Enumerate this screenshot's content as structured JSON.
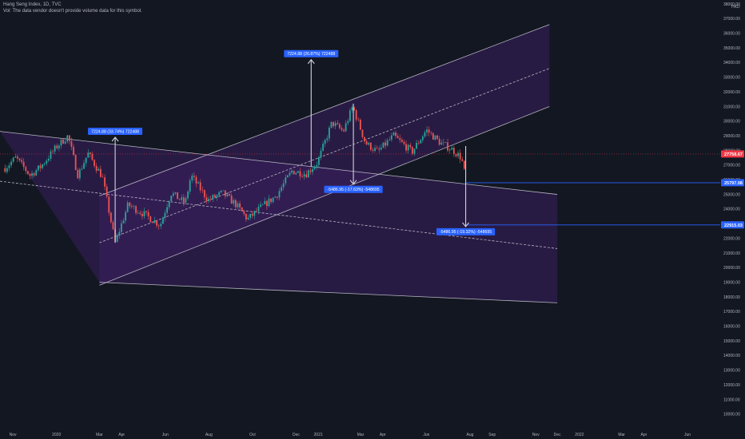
{
  "header": {
    "title": "Hang Seng Index, 1D, TVC",
    "subtitle": "Vol: The data vendor doesn't provide volume data for this symbol."
  },
  "colors": {
    "background": "#131722",
    "up": "#26a69a",
    "down": "#ef5350",
    "channel_line": "#d1d4dc",
    "channel_fill": "#3b1f5e",
    "label_blue": "#2962ff",
    "price_red": "#f23645"
  },
  "chart_data": {
    "type": "candlestick",
    "currency": "HKD",
    "ylim": [
      9500,
      38000
    ],
    "y_ticks": [
      "10000.00",
      "11000.00",
      "12000.00",
      "13000.00",
      "14000.00",
      "15000.00",
      "16000.00",
      "17000.00",
      "18000.00",
      "19000.00",
      "20000.00",
      "21000.00",
      "22000.00",
      "23000.00",
      "24000.00",
      "25000.00",
      "26000.00",
      "27000.00",
      "28000.00",
      "29000.00",
      "30000.00",
      "31000.00",
      "32000.00",
      "33000.00",
      "34000.00",
      "35000.00",
      "36000.00",
      "37000.00",
      "38000.00"
    ],
    "x_ticks": [
      "Nov",
      "2020",
      "Mar",
      "Apr",
      "Jun",
      "Aug",
      "Oct",
      "Dec",
      "2021",
      "Mar",
      "Apr",
      "Jun",
      "Aug",
      "Sep",
      "Nov",
      "Dec",
      "2022",
      "Mar",
      "Apr",
      "Jun"
    ],
    "x_tick_dates": [
      "2019-11-01",
      "2020-01-01",
      "2020-03-01",
      "2020-04-01",
      "2020-06-01",
      "2020-08-01",
      "2020-10-01",
      "2020-12-01",
      "2021-01-01",
      "2021-03-01",
      "2021-04-01",
      "2021-06-01",
      "2021-08-01",
      "2021-09-01",
      "2021-11-01",
      "2021-12-01",
      "2022-01-01",
      "2022-03-01",
      "2022-04-01",
      "2022-06-01"
    ],
    "price_path": [
      {
        "date": "2019-10-21",
        "close": 26800
      },
      {
        "date": "2019-11-05",
        "close": 27500
      },
      {
        "date": "2019-11-25",
        "close": 26300
      },
      {
        "date": "2019-12-10",
        "close": 26900
      },
      {
        "date": "2020-01-02",
        "close": 28300
      },
      {
        "date": "2020-01-17",
        "close": 29000
      },
      {
        "date": "2020-01-31",
        "close": 26300
      },
      {
        "date": "2020-02-14",
        "close": 27800
      },
      {
        "date": "2020-03-05",
        "close": 26200
      },
      {
        "date": "2020-03-23",
        "close": 21700
      },
      {
        "date": "2020-04-10",
        "close": 24300
      },
      {
        "date": "2020-05-04",
        "close": 23600
      },
      {
        "date": "2020-05-25",
        "close": 22900
      },
      {
        "date": "2020-06-09",
        "close": 25100
      },
      {
        "date": "2020-06-29",
        "close": 24400
      },
      {
        "date": "2020-07-07",
        "close": 26300
      },
      {
        "date": "2020-07-31",
        "close": 24600
      },
      {
        "date": "2020-08-20",
        "close": 25100
      },
      {
        "date": "2020-09-08",
        "close": 24300
      },
      {
        "date": "2020-09-24",
        "close": 23300
      },
      {
        "date": "2020-10-15",
        "close": 24200
      },
      {
        "date": "2020-11-03",
        "close": 24900
      },
      {
        "date": "2020-11-25",
        "close": 26600
      },
      {
        "date": "2020-12-15",
        "close": 26400
      },
      {
        "date": "2020-12-31",
        "close": 27200
      },
      {
        "date": "2021-01-20",
        "close": 29900
      },
      {
        "date": "2021-02-05",
        "close": 29300
      },
      {
        "date": "2021-02-18",
        "close": 31000
      },
      {
        "date": "2021-03-08",
        "close": 28500
      },
      {
        "date": "2021-03-25",
        "close": 27900
      },
      {
        "date": "2021-04-16",
        "close": 29000
      },
      {
        "date": "2021-05-12",
        "close": 27900
      },
      {
        "date": "2021-06-01",
        "close": 29400
      },
      {
        "date": "2021-06-21",
        "close": 28500
      },
      {
        "date": "2021-07-06",
        "close": 28100
      },
      {
        "date": "2021-07-20",
        "close": 27500
      },
      {
        "date": "2021-07-26",
        "close": 26100
      }
    ],
    "channels": [
      {
        "name": "descending",
        "upper": [
          {
            "date": "2019-10-14",
            "value": 29300
          },
          {
            "date": "2021-12-01",
            "value": 25000
          }
        ],
        "middle": [
          {
            "date": "2019-10-14",
            "value": 25900
          },
          {
            "date": "2021-12-01",
            "value": 21300
          }
        ],
        "lower": [
          {
            "date": "2020-03-01",
            "value": 19000
          },
          {
            "date": "2021-12-01",
            "value": 17600
          }
        ]
      },
      {
        "name": "ascending",
        "upper": [
          {
            "date": "2020-03-01",
            "value": 24900
          },
          {
            "date": "2021-11-20",
            "value": 36600
          }
        ],
        "middle": [
          {
            "date": "2020-03-01",
            "value": 21700
          },
          {
            "date": "2021-11-20",
            "value": 33600
          }
        ],
        "lower": [
          {
            "date": "2020-03-01",
            "value": 18800
          },
          {
            "date": "2021-11-20",
            "value": 31000
          }
        ]
      }
    ],
    "measurements": [
      {
        "from": {
          "date": "2020-03-23",
          "value": 21700
        },
        "to": {
          "date": "2020-03-23",
          "value": 28900
        },
        "label": "7224.88 (33.74%) 722488",
        "direction": "up"
      },
      {
        "from": {
          "date": "2020-12-22",
          "value": 26900
        },
        "to": {
          "date": "2020-12-22",
          "value": 34200
        },
        "label": "7224.88 (26.87%) 722488",
        "direction": "up"
      },
      {
        "from": {
          "date": "2021-02-19",
          "value": 31200
        },
        "to": {
          "date": "2021-02-19",
          "value": 25700
        },
        "label": "-5486.95 (-17.63%) -548695",
        "direction": "down"
      },
      {
        "from": {
          "date": "2021-07-26",
          "value": 28300
        },
        "to": {
          "date": "2021-07-26",
          "value": 22800
        },
        "label": "-5486.95 (-19.32%) -548695",
        "direction": "down"
      }
    ],
    "price_labels": [
      {
        "value": 27758.67,
        "text": "27758.67",
        "color": "#f23645"
      },
      {
        "value": 25797.08,
        "text": "25797.08",
        "color": "#2962ff",
        "line_from_date": "2021-07-26"
      },
      {
        "value": 22915.03,
        "text": "22915.03",
        "color": "#2962ff",
        "line_from_date": "2021-07-26"
      }
    ]
  }
}
